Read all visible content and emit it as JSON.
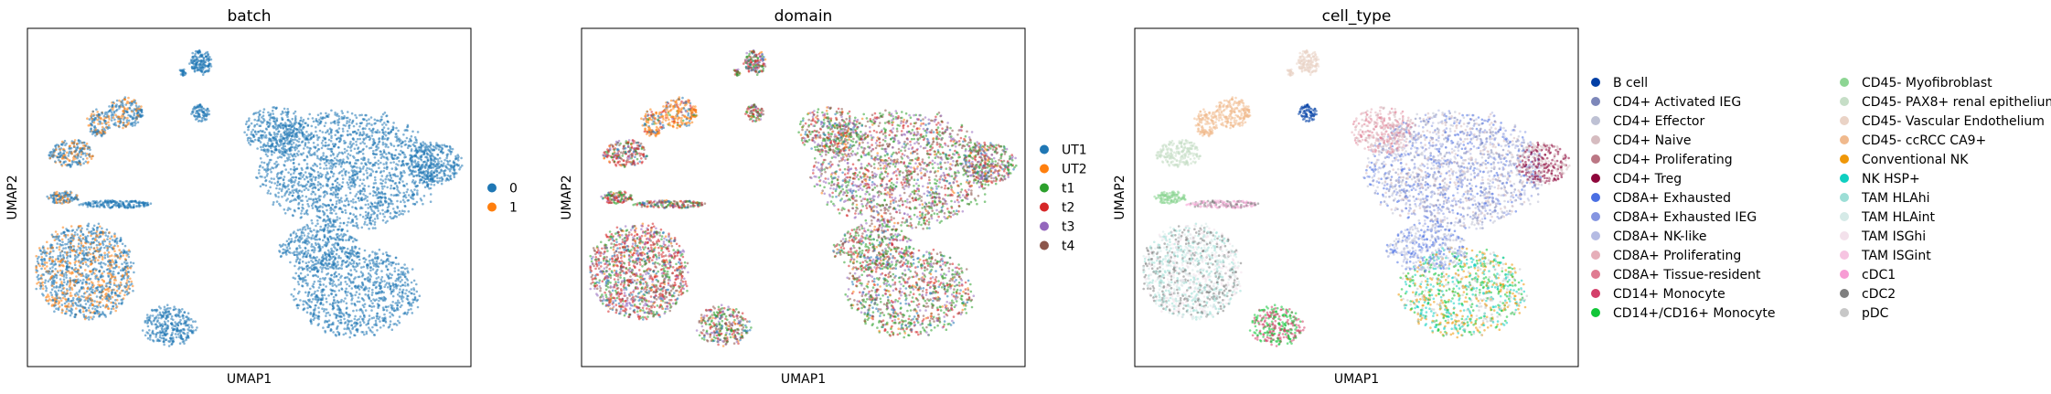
{
  "chart_data": [
    {
      "type": "scatter",
      "title": "batch",
      "xlabel": "UMAP1",
      "ylabel": "UMAP2",
      "grid": false,
      "axis_ticks": false,
      "legend_position": "right",
      "legend": [
        {
          "label": "0",
          "color": "#1f77b4"
        },
        {
          "label": "1",
          "color": "#ff7f0e"
        }
      ]
    },
    {
      "type": "scatter",
      "title": "domain",
      "xlabel": "UMAP1",
      "ylabel": "UMAP2",
      "grid": false,
      "axis_ticks": false,
      "legend_position": "right",
      "legend": [
        {
          "label": "UT1",
          "color": "#1f77b4"
        },
        {
          "label": "UT2",
          "color": "#ff7f0e"
        },
        {
          "label": "t1",
          "color": "#2ca02c"
        },
        {
          "label": "t2",
          "color": "#d62728"
        },
        {
          "label": "t3",
          "color": "#9467bd"
        },
        {
          "label": "t4",
          "color": "#8c564b"
        }
      ]
    },
    {
      "type": "scatter",
      "title": "cell_type",
      "xlabel": "UMAP1",
      "ylabel": "UMAP2",
      "grid": false,
      "axis_ticks": false,
      "legend_position": "right",
      "legend_columns": 2,
      "legend": [
        {
          "label": "B cell",
          "color": "#023fa5"
        },
        {
          "label": "CD4+ Activated IEG",
          "color": "#7d87b9"
        },
        {
          "label": "CD4+ Effector",
          "color": "#bec1d4"
        },
        {
          "label": "CD4+ Naive",
          "color": "#d6bcc0"
        },
        {
          "label": "CD4+ Proliferating",
          "color": "#bb7784"
        },
        {
          "label": "CD4+ Treg",
          "color": "#8e063b"
        },
        {
          "label": "CD8A+ Exhausted",
          "color": "#4a6fe3"
        },
        {
          "label": "CD8A+ Exhausted IEG",
          "color": "#8595e1"
        },
        {
          "label": "CD8A+ NK-like",
          "color": "#b5bbe3"
        },
        {
          "label": "CD8A+ Proliferating",
          "color": "#e6afb9"
        },
        {
          "label": "CD8A+ Tissue-resident",
          "color": "#e07b91"
        },
        {
          "label": "CD14+ Monocyte",
          "color": "#d33f6a"
        },
        {
          "label": "CD14+/CD16+ Monocyte",
          "color": "#11c638"
        },
        {
          "label": "CD45- Myofibroblast",
          "color": "#8dd593"
        },
        {
          "label": "CD45- PAX8+ renal epithelium",
          "color": "#c6dec7"
        },
        {
          "label": "CD45- Vascular Endothelium",
          "color": "#ead3c6"
        },
        {
          "label": "CD45- ccRCC CA9+",
          "color": "#f0b98d"
        },
        {
          "label": "Conventional NK",
          "color": "#ef9708"
        },
        {
          "label": "NK HSP+",
          "color": "#0fcfc0"
        },
        {
          "label": "TAM HLAhi",
          "color": "#9cded6"
        },
        {
          "label": "TAM HLAint",
          "color": "#d5eae7"
        },
        {
          "label": "TAM ISGhi",
          "color": "#f3e1eb"
        },
        {
          "label": "TAM ISGint",
          "color": "#f6c4e1"
        },
        {
          "label": "cDC1",
          "color": "#f79cd4"
        },
        {
          "label": "cDC2",
          "color": "#7f7f7f"
        },
        {
          "label": "pDC",
          "color": "#c7c7c7"
        }
      ]
    }
  ]
}
